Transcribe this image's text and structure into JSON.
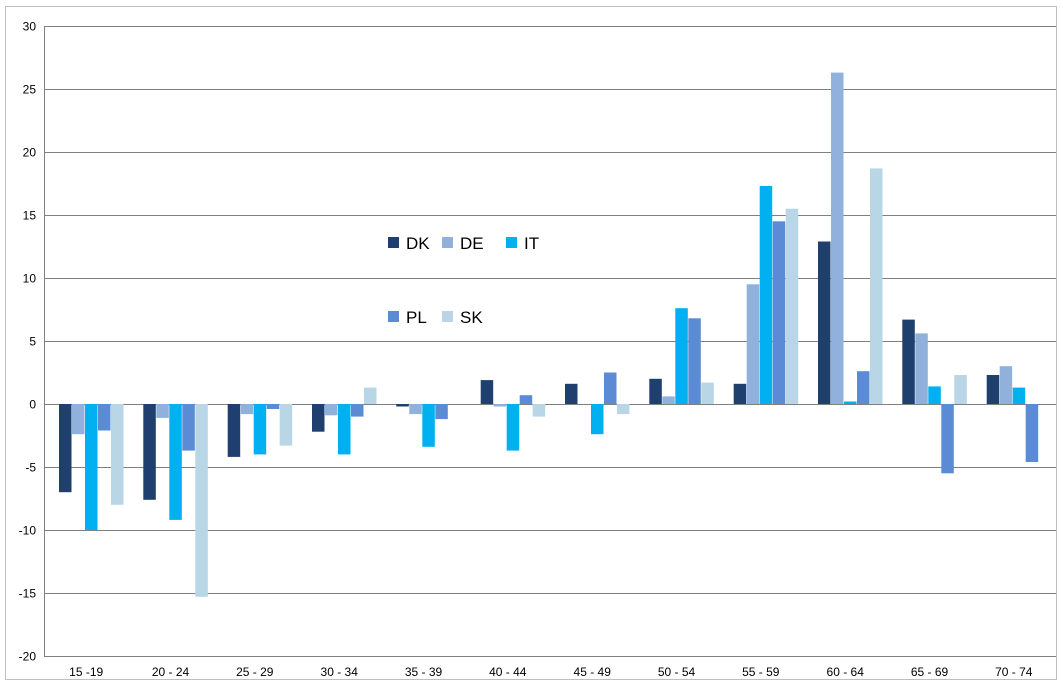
{
  "chart_data": {
    "type": "bar",
    "title": "",
    "xlabel": "",
    "ylabel": "",
    "ylim": [
      -20,
      30
    ],
    "yticks": [
      30,
      25,
      20,
      15,
      10,
      5,
      0,
      -5,
      -10,
      -15,
      -20
    ],
    "grid": true,
    "legend_position": "center",
    "categories": [
      "15 -19",
      "20 - 24",
      "25 - 29",
      "30 - 34",
      "35 - 39",
      "40 - 44",
      "45 - 49",
      "50 - 54",
      "55 - 59",
      "60 - 64",
      "65 - 69",
      "70 - 74"
    ],
    "series": [
      {
        "name": "DK",
        "color": "#1f3f6e",
        "values": [
          -7.0,
          -7.6,
          -4.2,
          -2.2,
          -0.2,
          1.9,
          1.6,
          2.0,
          1.6,
          12.9,
          6.7,
          2.3
        ]
      },
      {
        "name": "DE",
        "color": "#8fb1dc",
        "values": [
          -2.4,
          -1.1,
          -0.8,
          -0.9,
          -0.8,
          -0.2,
          0.0,
          0.6,
          9.5,
          26.3,
          5.6,
          3.0
        ]
      },
      {
        "name": "IT",
        "color": "#00b0f0",
        "values": [
          -10.0,
          -9.2,
          -4.0,
          -4.0,
          -3.4,
          -3.7,
          -2.4,
          7.6,
          17.3,
          0.2,
          1.4,
          1.3
        ]
      },
      {
        "name": "PL",
        "color": "#5b8bd4",
        "values": [
          -2.1,
          -3.7,
          -0.4,
          -1.0,
          -1.2,
          0.7,
          2.5,
          6.8,
          14.5,
          2.6,
          -5.5,
          -4.6
        ]
      },
      {
        "name": "SK",
        "color": "#b8d6e6",
        "values": [
          -8.0,
          -15.3,
          -3.3,
          1.3,
          0.0,
          -1.0,
          -0.8,
          1.7,
          15.5,
          18.7,
          2.3,
          0.0
        ]
      }
    ]
  }
}
